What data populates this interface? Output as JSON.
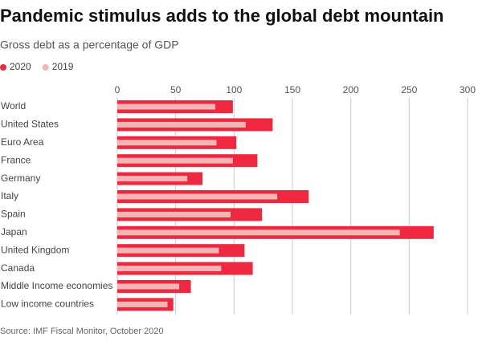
{
  "chart_data": {
    "type": "bar",
    "orientation": "horizontal",
    "overlap": true,
    "title": "Pandemic stimulus adds to the global debt mountain",
    "subtitle": "Gross debt as a percentage of GDP",
    "source": "Source: IMF Fiscal Monitor, October 2020",
    "categories": [
      "World",
      "United States",
      "Euro Area",
      "France",
      "Germany",
      "Italy",
      "Spain",
      "Japan",
      "United Kingdom",
      "Canada",
      "Middle Income economies",
      "Low income countries"
    ],
    "series": [
      {
        "name": "2020",
        "color": "#f0283f",
        "values": [
          99,
          133,
          102,
          120,
          73,
          164,
          124,
          271,
          109,
          116,
          63,
          48
        ]
      },
      {
        "name": "2019",
        "color": "#f2b6b6",
        "values": [
          84,
          110,
          85,
          99,
          60,
          137,
          97,
          242,
          87,
          89,
          53,
          43
        ]
      }
    ],
    "xlim": [
      0,
      300
    ],
    "xticks": [
      0,
      50,
      100,
      150,
      200,
      250,
      300
    ],
    "grid": true,
    "legend": "top-left"
  }
}
